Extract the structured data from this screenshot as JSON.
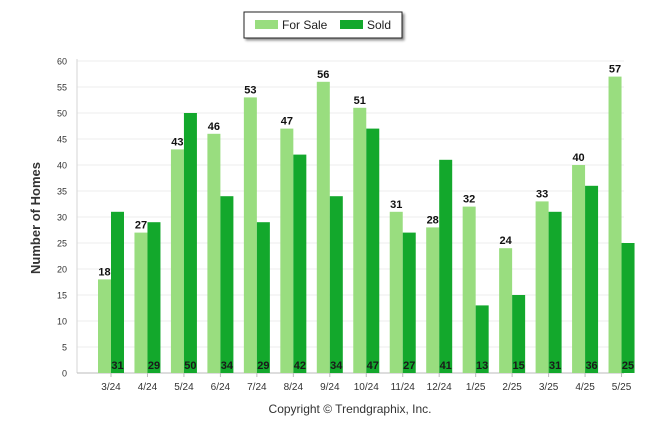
{
  "chart_data": {
    "type": "bar",
    "categories": [
      "3/24",
      "4/24",
      "5/24",
      "6/24",
      "7/24",
      "8/24",
      "9/24",
      "10/24",
      "11/24",
      "12/24",
      "1/25",
      "2/25",
      "3/25",
      "4/25",
      "5/25"
    ],
    "series": [
      {
        "name": "For Sale",
        "values": [
          18,
          27,
          43,
          46,
          53,
          47,
          56,
          51,
          31,
          28,
          32,
          24,
          33,
          40,
          57
        ],
        "color": "#99dd7f",
        "label_position": "top"
      },
      {
        "name": "Sold",
        "values": [
          31,
          29,
          50,
          34,
          29,
          42,
          34,
          47,
          27,
          41,
          13,
          15,
          31,
          36,
          25
        ],
        "color": "#13a82c",
        "label_position": "bottom"
      }
    ],
    "ylabel": "Number of Homes",
    "ylim": [
      0,
      60
    ],
    "yticks": [
      0,
      5,
      10,
      15,
      20,
      25,
      30,
      35,
      40,
      45,
      50,
      55,
      60
    ],
    "grid": true,
    "legend_position": "top-center"
  },
  "footer": {
    "copyright": "Copyright © Trendgraphix, Inc."
  }
}
